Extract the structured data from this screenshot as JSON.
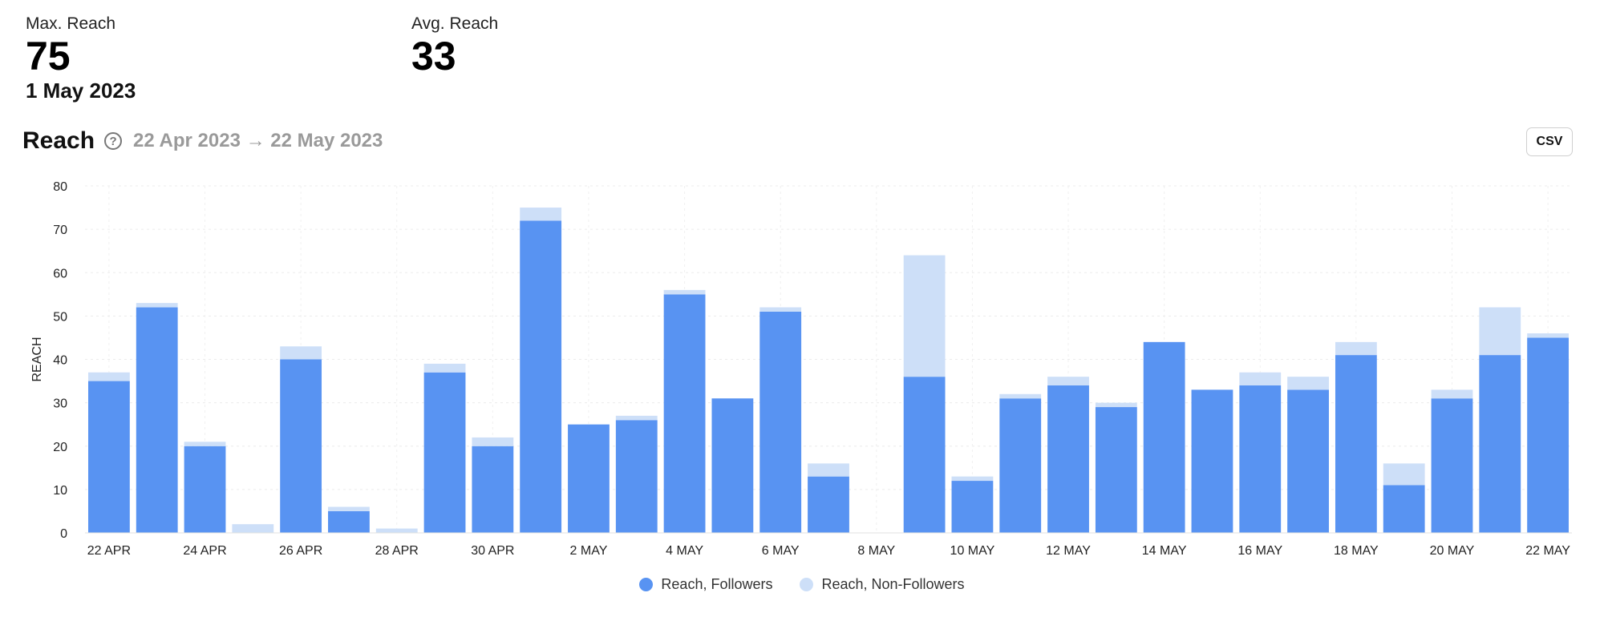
{
  "stats": {
    "max_label": "Max. Reach",
    "max_value": "75",
    "max_date": "1 May 2023",
    "avg_label": "Avg. Reach",
    "avg_value": "33"
  },
  "header": {
    "title": "Reach",
    "help_icon": "question-circle-icon",
    "date_range": "22 Apr 2023 → 22 May 2023",
    "csv_label": "CSV"
  },
  "colors": {
    "followers": "#5893f2",
    "non_followers": "#cddff8"
  },
  "chart_data": {
    "type": "bar",
    "stacked": true,
    "ylabel": "REACH",
    "ylim": [
      0,
      80
    ],
    "yticks": [
      0,
      10,
      20,
      30,
      40,
      50,
      60,
      70,
      80
    ],
    "grid": true,
    "legend_position": "bottom-center",
    "categories": [
      "22 APR",
      "23 APR",
      "24 APR",
      "25 APR",
      "26 APR",
      "27 APR",
      "28 APR",
      "29 APR",
      "30 APR",
      "1 MAY",
      "2 MAY",
      "3 MAY",
      "4 MAY",
      "5 MAY",
      "6 MAY",
      "7 MAY",
      "8 MAY",
      "9 MAY",
      "10 MAY",
      "11 MAY",
      "12 MAY",
      "13 MAY",
      "14 MAY",
      "15 MAY",
      "16 MAY",
      "17 MAY",
      "18 MAY",
      "19 MAY",
      "20 MAY",
      "21 MAY",
      "22 MAY"
    ],
    "tick_labels": [
      "22 APR",
      "24 APR",
      "26 APR",
      "28 APR",
      "30 APR",
      "2 MAY",
      "4 MAY",
      "6 MAY",
      "8 MAY",
      "10 MAY",
      "12 MAY",
      "14 MAY",
      "16 MAY",
      "18 MAY",
      "20 MAY",
      "22 MAY"
    ],
    "series": [
      {
        "name": "Reach, Followers",
        "values": [
          35,
          52,
          20,
          0,
          40,
          5,
          0,
          37,
          20,
          72,
          25,
          26,
          55,
          31,
          51,
          13,
          0,
          36,
          12,
          31,
          34,
          29,
          44,
          33,
          34,
          33,
          41,
          11,
          31,
          41,
          45
        ]
      },
      {
        "name": "Reach, Non-Followers",
        "values": [
          2,
          1,
          1,
          2,
          3,
          1,
          1,
          2,
          2,
          3,
          0,
          1,
          1,
          0,
          1,
          3,
          0,
          28,
          1,
          1,
          2,
          1,
          0,
          0,
          3,
          3,
          3,
          5,
          2,
          11,
          1
        ]
      }
    ]
  }
}
